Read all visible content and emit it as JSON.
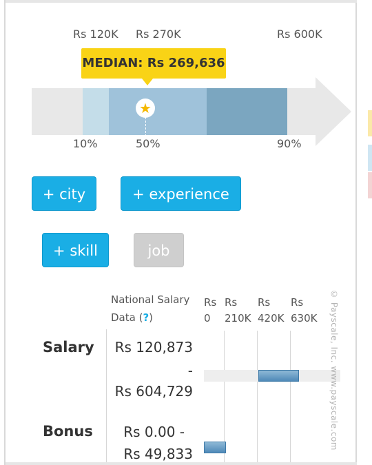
{
  "range": {
    "top_labels": [
      "Rs 120K",
      "Rs 270K",
      "Rs 600K"
    ],
    "bottom_labels": [
      "10%",
      "50%",
      "90%"
    ],
    "median_label": "MEDIAN: Rs 269,636"
  },
  "buttons": {
    "city": "+ city",
    "experience": "+ experience",
    "skill": "+ skill",
    "job": "job"
  },
  "table": {
    "header_line1": "National Salary",
    "header_line2": "Data (",
    "help": "?",
    "header_close": ")",
    "ticks": [
      {
        "cur": "Rs",
        "amt": "0"
      },
      {
        "cur": "Rs",
        "amt": "210K"
      },
      {
        "cur": "Rs",
        "amt": "420K"
      },
      {
        "cur": "Rs",
        "amt": "630K"
      }
    ],
    "rows": [
      {
        "label": "Salary",
        "min": "Rs 120,873",
        "sep": "-",
        "max": "Rs 604,729",
        "range": [
          120873,
          604729
        ]
      },
      {
        "label": "Bonus",
        "min": "Rs 0.00 -",
        "max": "Rs 49,833",
        "range": [
          0,
          49833
        ]
      }
    ],
    "axis_max": 630000,
    "copyright": "© Payscale, Inc.   www.payscale.com"
  },
  "colors": {
    "accent": "#1aaee5",
    "median": "#f9d316",
    "bar": "#4f89b8"
  }
}
